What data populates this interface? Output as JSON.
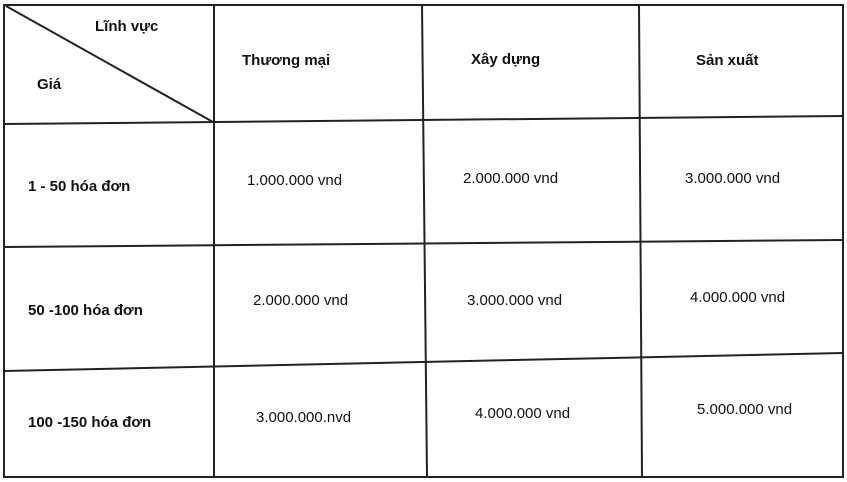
{
  "table": {
    "corner": {
      "top_label": "Lĩnh vực",
      "bottom_label": "Giá"
    },
    "columns": [
      "Thương mại",
      "Xây dựng",
      "Sản xuất"
    ],
    "rows": [
      {
        "label": "1 - 50 hóa đơn",
        "values": [
          "1.000.000 vnd",
          "2.000.000 vnd",
          "3.000.000 vnd"
        ]
      },
      {
        "label": "50 -100 hóa đơn",
        "values": [
          "2.000.000 vnd",
          "3.000.000 vnd",
          "4.000.000 vnd"
        ]
      },
      {
        "label": "100 -150 hóa đơn",
        "values": [
          "3.000.000.nvd",
          "4.000.000 vnd",
          "5.000.000 vnd"
        ]
      }
    ]
  }
}
